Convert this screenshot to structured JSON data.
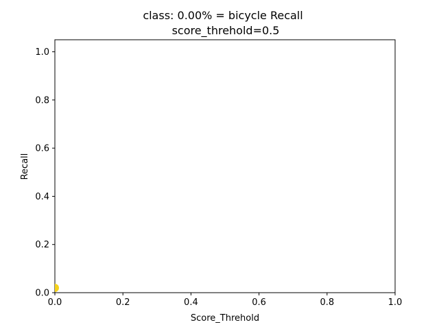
{
  "chart_data": {
    "type": "scatter",
    "title": "class: 0.00% = bicycle Recall",
    "subtitle": "score_threhold=0.5",
    "xlabel": "Score_Threhold",
    "ylabel": "Recall",
    "xlim": [
      0.0,
      1.0
    ],
    "ylim": [
      0.0,
      1.05
    ],
    "x_ticks": [
      0.0,
      0.2,
      0.4,
      0.6,
      0.8,
      1.0
    ],
    "x_tick_labels": [
      "0.0",
      "0.2",
      "0.4",
      "0.6",
      "0.8",
      "1.0"
    ],
    "y_ticks": [
      0.0,
      0.2,
      0.4,
      0.6,
      0.8,
      1.0
    ],
    "y_tick_labels": [
      "0.0",
      "0.2",
      "0.4",
      "0.6",
      "0.8",
      "1.0"
    ],
    "grid": false,
    "legend": "none",
    "series": [
      {
        "points": [
          {
            "x": 0.0,
            "y": 0.02
          }
        ],
        "color": "#f5d21b"
      }
    ]
  }
}
